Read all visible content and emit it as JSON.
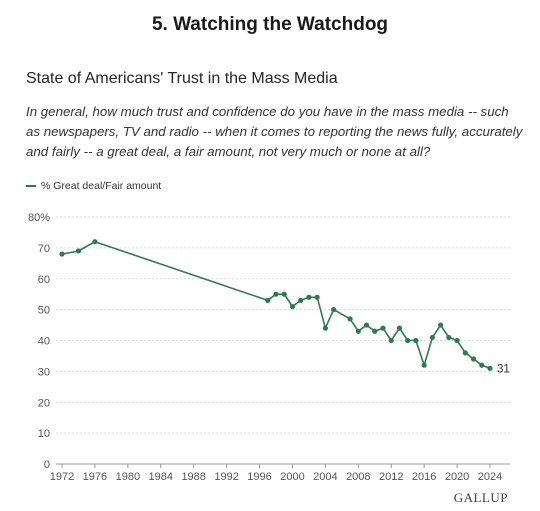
{
  "heading": "5. Watching the Watchdog",
  "brand": "GALLUP",
  "chart_data": {
    "type": "line",
    "title": "State of Americans' Trust in the Mass Media",
    "subtitle": "In general, how much trust and confidence do you have in the mass media -- such as newspapers, TV and radio -- when it comes to reporting the news fully, accurately and fairly -- a great deal, a fair amount, not very much or none at all?",
    "xlabel": "",
    "ylabel": "",
    "xlim": [
      1972,
      2024
    ],
    "ylim": [
      0,
      80
    ],
    "x_ticks": [
      1972,
      1976,
      1980,
      1984,
      1988,
      1992,
      1996,
      2000,
      2004,
      2008,
      2012,
      2016,
      2020,
      2024
    ],
    "y_ticks": [
      0,
      10,
      20,
      30,
      40,
      50,
      60,
      70,
      80
    ],
    "y_tick_labels": [
      "0",
      "10",
      "20",
      "30",
      "40",
      "50",
      "60",
      "70",
      "80%"
    ],
    "grid": "horizontal",
    "legend_position": "top-left",
    "color": "#2f7a4f",
    "series": [
      {
        "name": "% Great deal/Fair amount",
        "x": [
          1972,
          1974,
          1976,
          1997,
          1998,
          1999,
          2000,
          2001,
          2002,
          2003,
          2004,
          2005,
          2007,
          2008,
          2009,
          2010,
          2011,
          2012,
          2013,
          2014,
          2015,
          2016,
          2017,
          2018,
          2019,
          2020,
          2021,
          2022,
          2023,
          2024
        ],
        "values": [
          68,
          69,
          72,
          53,
          55,
          55,
          51,
          53,
          54,
          54,
          44,
          50,
          47,
          43,
          45,
          43,
          44,
          40,
          44,
          40,
          40,
          32,
          41,
          45,
          41,
          40,
          36,
          34,
          32,
          31
        ]
      }
    ],
    "end_label": "31"
  }
}
